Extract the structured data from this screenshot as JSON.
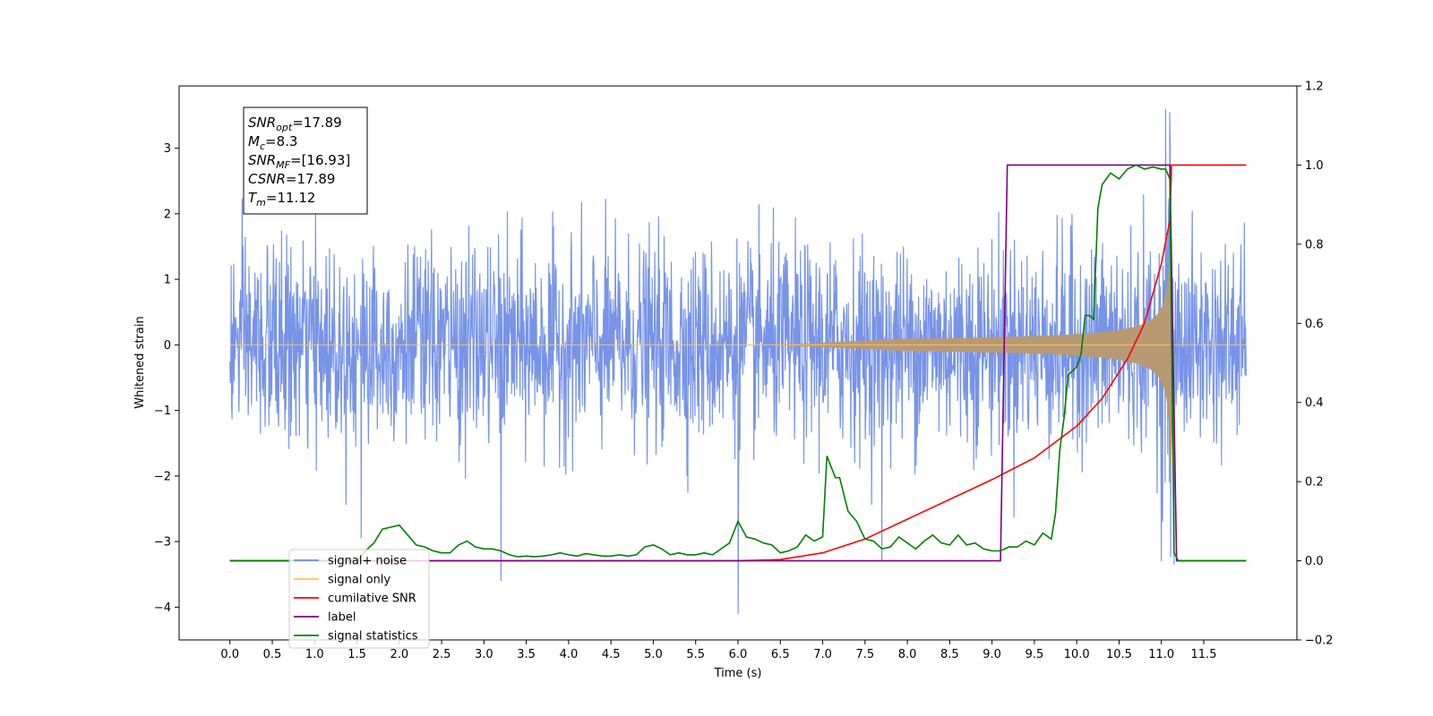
{
  "chart_data": {
    "type": "line",
    "xlabel": "Time (s)",
    "ylabel": "Whitened strain",
    "xlim": [
      -0.6,
      12.6
    ],
    "ylim": [
      -4.5,
      3.95
    ],
    "y2lim": [
      -0.2,
      1.2
    ],
    "xticks": [
      "0.0",
      "0.5",
      "1.0",
      "1.5",
      "2.0",
      "2.5",
      "3.0",
      "3.5",
      "4.0",
      "4.5",
      "5.0",
      "5.5",
      "6.0",
      "6.5",
      "7.0",
      "7.5",
      "8.0",
      "8.5",
      "9.0",
      "9.5",
      "10.0",
      "10.5",
      "11.0",
      "11.5"
    ],
    "yticks": [
      "3",
      "2",
      "1",
      "0",
      "−1",
      "−2",
      "−3",
      "−4"
    ],
    "y2ticks": [
      "1.2",
      "1.0",
      "0.8",
      "0.6",
      "0.4",
      "0.2",
      "0.0",
      "−0.2"
    ],
    "grid": false,
    "legend_position": "lower-left",
    "info_box": [
      {
        "main": "SNR",
        "sub": "opt",
        "value": "=17.89"
      },
      {
        "main": "M",
        "sub": "c",
        "value": "=8.3"
      },
      {
        "main": "SNR",
        "sub": "MF",
        "value": "=[16.93]"
      },
      {
        "main": "CSNR",
        "sub": "",
        "value": "=17.89"
      },
      {
        "main": "T",
        "sub": "m",
        "value": "=11.12"
      }
    ],
    "series": [
      {
        "name": "signal+ noise",
        "color": "#6b8be6",
        "axis": "left",
        "description_kind": "noise",
        "amplitude_std": 0.75,
        "x_range": [
          0.0,
          12.0
        ],
        "spikes": [
          [
            6.0,
            -4.1
          ],
          [
            3.2,
            -3.6
          ],
          [
            11.05,
            3.6
          ],
          [
            11.1,
            3.55
          ],
          [
            7.7,
            -3.3
          ],
          [
            1.55,
            -2.95
          ],
          [
            11.0,
            -3.3
          ],
          [
            11.15,
            -3.35
          ]
        ]
      },
      {
        "name": "signal only",
        "color": "#ffbf60",
        "axis": "left",
        "description_kind": "chirp",
        "merger_time": 11.12,
        "peak_amplitude": 2.1
      },
      {
        "name": "cumilative SNR",
        "color": "#ff0000",
        "axis": "right",
        "x": [
          0.0,
          6.0,
          6.5,
          7.0,
          7.5,
          8.0,
          8.5,
          9.0,
          9.5,
          10.0,
          10.3,
          10.6,
          10.8,
          11.0,
          11.1,
          11.12,
          12.0
        ],
        "y": [
          0.0,
          0.0,
          0.003,
          0.02,
          0.055,
          0.105,
          0.155,
          0.205,
          0.26,
          0.34,
          0.41,
          0.51,
          0.6,
          0.75,
          0.86,
          1.0,
          1.0
        ]
      },
      {
        "name": "label",
        "color": "#800080",
        "axis": "right",
        "x": [
          0.0,
          9.1,
          9.18,
          11.1,
          11.18,
          12.0
        ],
        "y": [
          0.0,
          0.0,
          1.0,
          1.0,
          0.0,
          0.0
        ]
      },
      {
        "name": "signal statistics",
        "color": "#008000",
        "axis": "right",
        "x": [
          0.0,
          1.5,
          1.6,
          1.7,
          1.8,
          1.9,
          2.0,
          2.1,
          2.2,
          2.3,
          2.4,
          2.5,
          2.6,
          2.7,
          2.8,
          2.9,
          3.0,
          3.1,
          3.2,
          3.3,
          3.4,
          3.5,
          3.6,
          3.7,
          3.8,
          3.9,
          4.0,
          4.1,
          4.2,
          4.3,
          4.4,
          4.5,
          4.6,
          4.7,
          4.8,
          4.9,
          5.0,
          5.1,
          5.2,
          5.3,
          5.4,
          5.5,
          5.6,
          5.7,
          5.8,
          5.9,
          6.0,
          6.1,
          6.2,
          6.3,
          6.4,
          6.5,
          6.6,
          6.7,
          6.8,
          6.9,
          7.0,
          7.05,
          7.15,
          7.2,
          7.3,
          7.4,
          7.5,
          7.6,
          7.7,
          7.8,
          7.9,
          8.0,
          8.1,
          8.2,
          8.3,
          8.4,
          8.5,
          8.6,
          8.7,
          8.8,
          8.9,
          9.0,
          9.1,
          9.2,
          9.3,
          9.4,
          9.5,
          9.6,
          9.7,
          9.75,
          9.8,
          9.85,
          9.9,
          9.95,
          10.0,
          10.05,
          10.1,
          10.15,
          10.2,
          10.25,
          10.3,
          10.4,
          10.5,
          10.6,
          10.7,
          10.8,
          10.9,
          11.0,
          11.05,
          11.1,
          11.15,
          11.2,
          12.0
        ],
        "y": [
          0.0,
          0.0,
          0.025,
          0.045,
          0.08,
          0.085,
          0.09,
          0.065,
          0.04,
          0.035,
          0.025,
          0.02,
          0.02,
          0.04,
          0.05,
          0.035,
          0.03,
          0.03,
          0.025,
          0.015,
          0.01,
          0.012,
          0.01,
          0.012,
          0.015,
          0.02,
          0.015,
          0.012,
          0.018,
          0.015,
          0.012,
          0.012,
          0.015,
          0.012,
          0.015,
          0.035,
          0.04,
          0.03,
          0.015,
          0.02,
          0.015,
          0.015,
          0.02,
          0.015,
          0.03,
          0.045,
          0.1,
          0.06,
          0.055,
          0.045,
          0.04,
          0.02,
          0.025,
          0.035,
          0.065,
          0.05,
          0.06,
          0.265,
          0.21,
          0.21,
          0.125,
          0.1,
          0.055,
          0.05,
          0.03,
          0.035,
          0.06,
          0.045,
          0.03,
          0.05,
          0.065,
          0.045,
          0.04,
          0.065,
          0.04,
          0.045,
          0.03,
          0.025,
          0.025,
          0.035,
          0.035,
          0.05,
          0.04,
          0.07,
          0.055,
          0.12,
          0.28,
          0.36,
          0.47,
          0.48,
          0.49,
          0.52,
          0.62,
          0.62,
          0.61,
          0.89,
          0.95,
          0.98,
          0.965,
          0.99,
          1.0,
          0.99,
          0.995,
          0.99,
          0.99,
          0.965,
          0.02,
          0.0,
          0.0
        ]
      }
    ]
  }
}
